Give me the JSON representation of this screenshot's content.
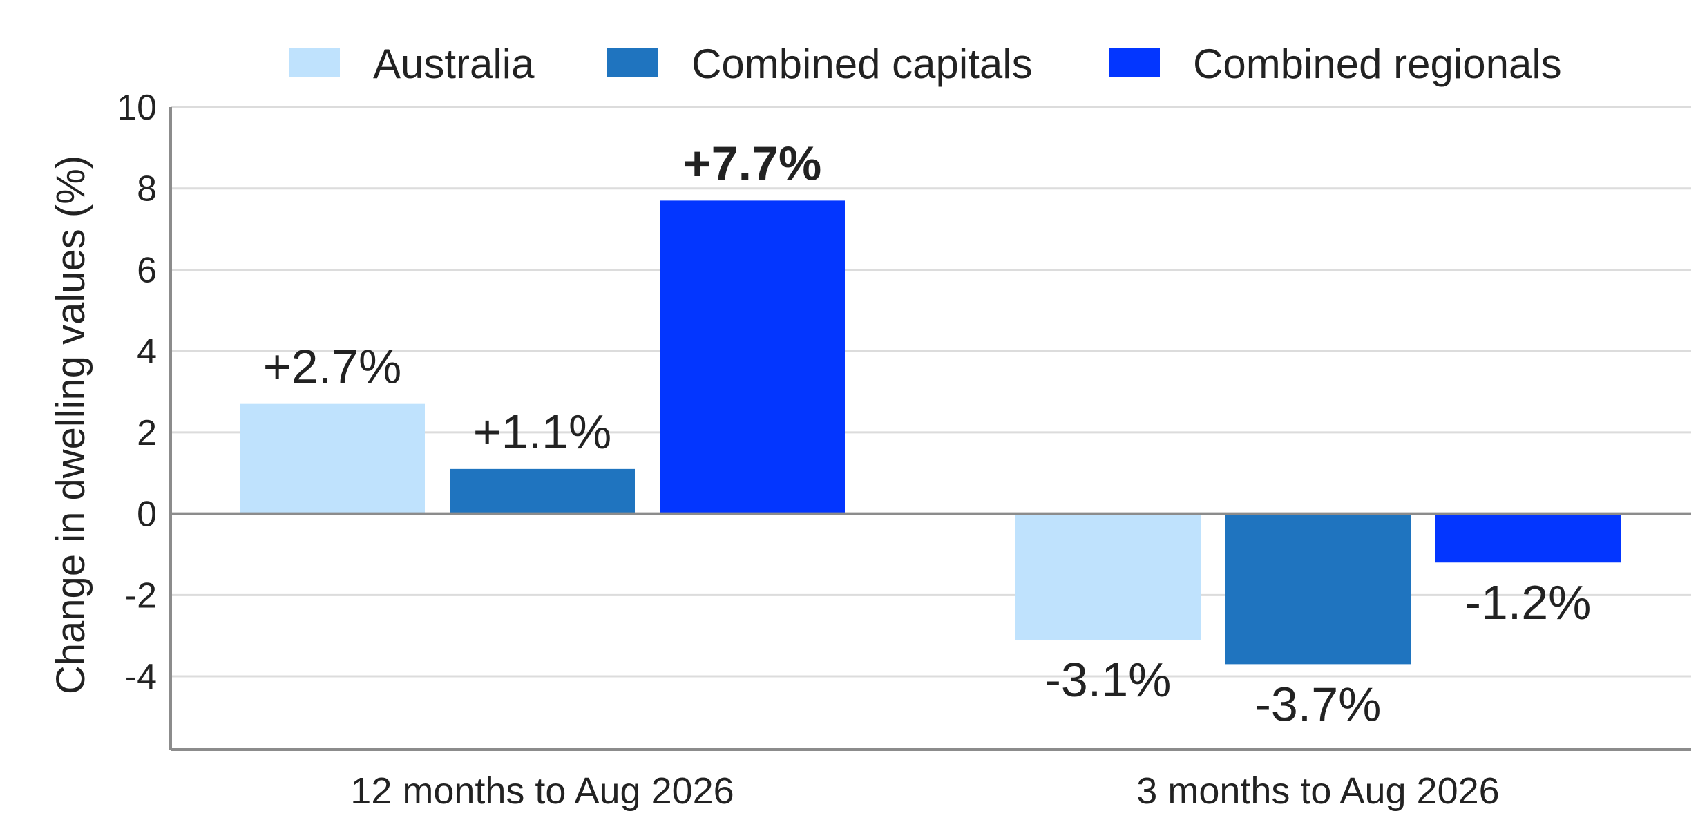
{
  "chart_data": {
    "type": "bar",
    "title": "",
    "xlabel": "",
    "ylabel": "Change in dwelling values (%)",
    "ylim": [
      -5.8,
      10
    ],
    "yticks": [
      10,
      8,
      6,
      4,
      2,
      0,
      -2,
      -4
    ],
    "grid": true,
    "legend_position": "top",
    "categories": [
      "12 months to Aug 2026",
      "3 months to Aug 2026"
    ],
    "series": [
      {
        "name": "Australia",
        "color": "#bfe2fd",
        "values": [
          2.7,
          -3.1
        ],
        "labels": [
          "+2.7%",
          "-3.1%"
        ],
        "bold": [
          false,
          false
        ]
      },
      {
        "name": "Combined capitals",
        "color": "#1f74bf",
        "values": [
          1.1,
          -3.7
        ],
        "labels": [
          "+1.1%",
          "-3.7%"
        ],
        "bold": [
          false,
          false
        ]
      },
      {
        "name": "Combined regionals",
        "color": "#0336ff",
        "values": [
          7.7,
          -1.2
        ],
        "labels": [
          "+7.7%",
          "-1.2%"
        ],
        "bold": [
          true,
          false
        ]
      }
    ]
  }
}
